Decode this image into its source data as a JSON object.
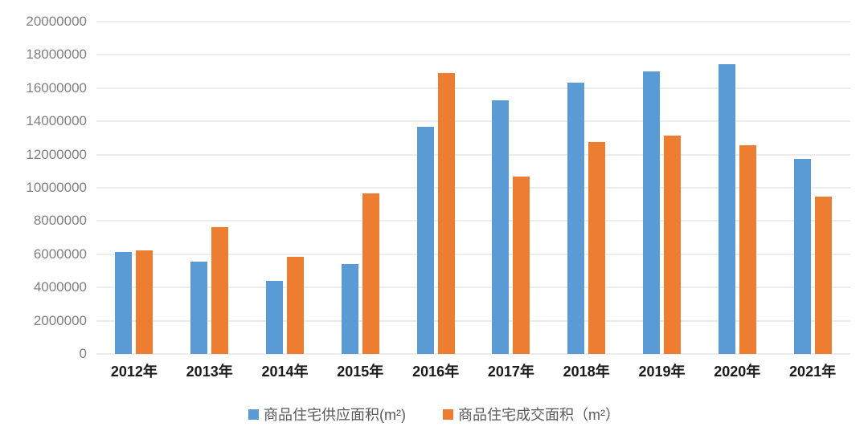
{
  "chart_data": {
    "type": "bar",
    "title": "",
    "xlabel": "",
    "ylabel": "",
    "categories": [
      "2012年",
      "2013年",
      "2014年",
      "2015年",
      "2016年",
      "2017年",
      "2018年",
      "2019年",
      "2020年",
      "2021年"
    ],
    "series": [
      {
        "key": "supply",
        "name": "商品住宅供应面积(m²)",
        "color": "#5B9BD5",
        "values": [
          6150000,
          5550000,
          4400000,
          5400000,
          13650000,
          15250000,
          16350000,
          17000000,
          17450000,
          11750000
        ]
      },
      {
        "key": "transaction",
        "name": "商品住宅成交面积（m²）",
        "color": "#ED7D31",
        "values": [
          6250000,
          7650000,
          5850000,
          9650000,
          16900000,
          10700000,
          12750000,
          13150000,
          12550000,
          9450000
        ]
      }
    ],
    "ylim": [
      0,
      20000000
    ],
    "ytick_interval": 2000000,
    "ytick_labels": [
      "0",
      "2000000",
      "4000000",
      "6000000",
      "8000000",
      "10000000",
      "12000000",
      "14000000",
      "16000000",
      "18000000",
      "20000000"
    ],
    "grid": true,
    "legend_position": "bottom"
  },
  "style": {
    "gridline_color": "#D9D9D9",
    "y_label_color": "#7F7F7F",
    "x_label_color": "#1a1a1a",
    "legend_text_color": "#595959",
    "background_color": "#ffffff"
  }
}
